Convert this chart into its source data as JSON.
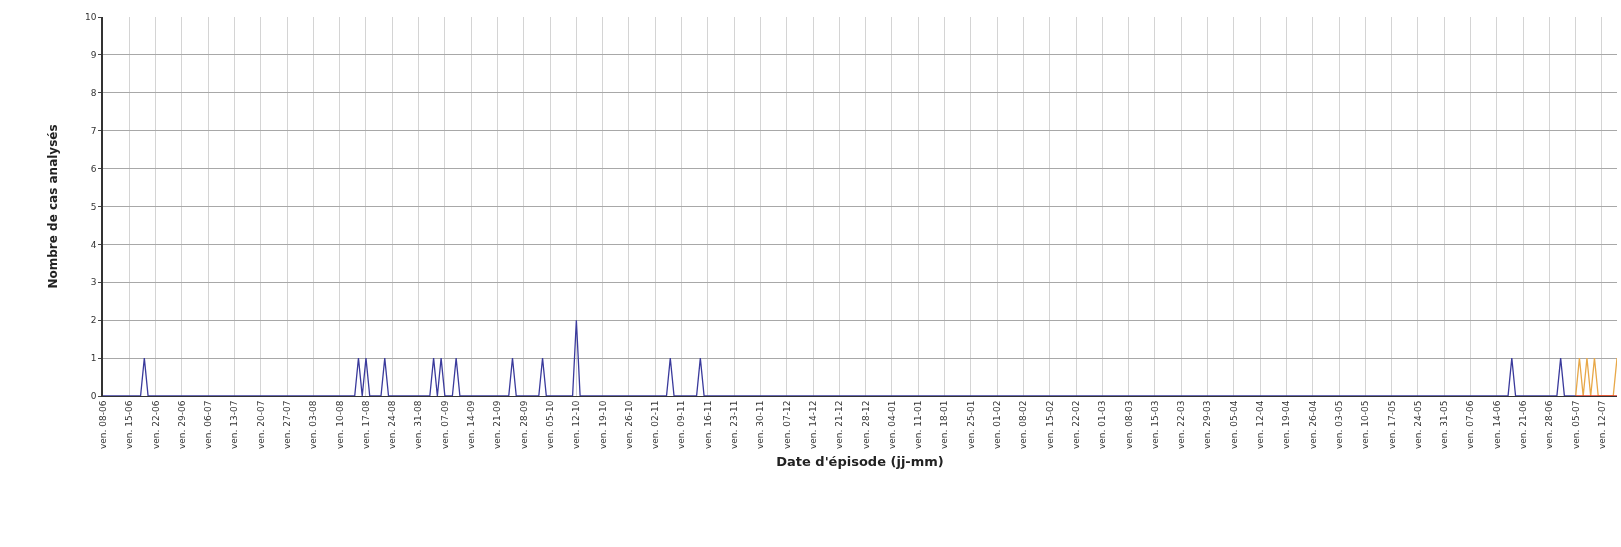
{
  "chart_data": {
    "type": "line",
    "xlabel": "Date d'épisode (jj-mm)",
    "ylabel": "Nombre de cas analysés",
    "ylim": [
      0,
      10
    ],
    "yticks": [
      0,
      1,
      2,
      3,
      4,
      5,
      6,
      7,
      8,
      9,
      10
    ],
    "categories": [
      "ven. 08-06",
      null,
      null,
      null,
      null,
      null,
      null,
      "ven. 15-06",
      null,
      null,
      null,
      null,
      null,
      null,
      "ven. 22-06",
      null,
      null,
      null,
      null,
      null,
      null,
      "ven. 29-06",
      null,
      null,
      null,
      null,
      null,
      null,
      "ven. 06-07",
      null,
      null,
      null,
      null,
      null,
      null,
      "ven. 13-07",
      null,
      null,
      null,
      null,
      null,
      null,
      "ven. 20-07",
      null,
      null,
      null,
      null,
      null,
      null,
      "ven. 27-07",
      null,
      null,
      null,
      null,
      null,
      null,
      "ven. 03-08",
      null,
      null,
      null,
      null,
      null,
      null,
      "ven. 10-08",
      null,
      null,
      null,
      null,
      null,
      null,
      "ven. 17-08",
      null,
      null,
      null,
      null,
      null,
      null,
      "ven. 24-08",
      null,
      null,
      null,
      null,
      null,
      null,
      "ven. 31-08",
      null,
      null,
      null,
      null,
      null,
      null,
      "ven. 07-09",
      null,
      null,
      null,
      null,
      null,
      null,
      "ven. 14-09",
      null,
      null,
      null,
      null,
      null,
      null,
      "ven. 21-09",
      null,
      null,
      null,
      null,
      null,
      null,
      "ven. 28-09",
      null,
      null,
      null,
      null,
      null,
      null,
      "ven. 05-10",
      null,
      null,
      null,
      null,
      null,
      null,
      "ven. 12-10",
      null,
      null,
      null,
      null,
      null,
      null,
      "ven. 19-10",
      null,
      null,
      null,
      null,
      null,
      null,
      "ven. 26-10",
      null,
      null,
      null,
      null,
      null,
      null,
      "ven. 02-11",
      null,
      null,
      null,
      null,
      null,
      null,
      "ven. 09-11",
      null,
      null,
      null,
      null,
      null,
      null,
      "ven. 16-11",
      null,
      null,
      null,
      null,
      null,
      null,
      "ven. 23-11",
      null,
      null,
      null,
      null,
      null,
      null,
      "ven. 30-11",
      null,
      null,
      null,
      null,
      null,
      null,
      "ven. 07-12",
      null,
      null,
      null,
      null,
      null,
      null,
      "ven. 14-12",
      null,
      null,
      null,
      null,
      null,
      null,
      "ven. 21-12",
      null,
      null,
      null,
      null,
      null,
      null,
      "ven. 28-12",
      null,
      null,
      null,
      null,
      null,
      null,
      "ven. 04-01",
      null,
      null,
      null,
      null,
      null,
      null,
      "ven. 11-01",
      null,
      null,
      null,
      null,
      null,
      null,
      "ven. 18-01",
      null,
      null,
      null,
      null,
      null,
      null,
      "ven. 25-01",
      null,
      null,
      null,
      null,
      null,
      null,
      "ven. 01-02",
      null,
      null,
      null,
      null,
      null,
      null,
      "ven. 08-02",
      null,
      null,
      null,
      null,
      null,
      null,
      "ven. 15-02",
      null,
      null,
      null,
      null,
      null,
      null,
      "ven. 22-02",
      null,
      null,
      null,
      null,
      null,
      null,
      "ven. 01-03",
      null,
      null,
      null,
      null,
      null,
      null,
      "ven. 08-03",
      null,
      null,
      null,
      null,
      null,
      null,
      "ven. 15-03",
      null,
      null,
      null,
      null,
      null,
      null,
      "ven. 22-03",
      null,
      null,
      null,
      null,
      null,
      null,
      "ven. 29-03",
      null,
      null,
      null,
      null,
      null,
      null,
      "ven. 05-04",
      null,
      null,
      null,
      null,
      null,
      null,
      "ven. 12-04",
      null,
      null,
      null,
      null,
      null,
      null,
      "ven. 19-04",
      null,
      null,
      null,
      null,
      null,
      null,
      "ven. 26-04",
      null,
      null,
      null,
      null,
      null,
      null,
      "ven. 03-05",
      null,
      null,
      null,
      null,
      null,
      null,
      "ven. 10-05",
      null,
      null,
      null,
      null,
      null,
      null,
      "ven. 17-05",
      null,
      null,
      null,
      null,
      null,
      null,
      "ven. 24-05",
      null,
      null,
      null,
      null,
      null,
      null,
      "ven. 31-05",
      null,
      null,
      null,
      null,
      null,
      null,
      "ven. 07-06",
      null,
      null,
      null,
      null,
      null,
      null,
      "ven. 14-06",
      null,
      null,
      null,
      null,
      null,
      null,
      "ven. 21-06",
      null,
      null,
      null,
      null,
      null,
      null,
      "ven. 28-06",
      null,
      null,
      null,
      null,
      null,
      null,
      "ven. 05-07",
      null,
      null,
      null,
      null,
      null,
      null,
      "ven. 12-07",
      null,
      null,
      null,
      null
    ],
    "grid": true,
    "marker": "none",
    "line_style": "solid",
    "series": [
      {
        "color": "#e8a848",
        "values": [
          null,
          null,
          null,
          null,
          null,
          null,
          null,
          null,
          null,
          null,
          null,
          null,
          null,
          null,
          null,
          null,
          null,
          null,
          null,
          null,
          null,
          null,
          null,
          null,
          null,
          null,
          null,
          null,
          null,
          null,
          null,
          null,
          null,
          null,
          null,
          null,
          null,
          null,
          null,
          null,
          null,
          null,
          null,
          null,
          null,
          null,
          null,
          null,
          null,
          null,
          null,
          null,
          null,
          null,
          null,
          null,
          null,
          null,
          null,
          null,
          null,
          null,
          null,
          null,
          null,
          null,
          null,
          null,
          null,
          null,
          null,
          null,
          null,
          null,
          null,
          null,
          null,
          null,
          null,
          null,
          null,
          null,
          null,
          null,
          null,
          null,
          null,
          null,
          null,
          null,
          null,
          null,
          null,
          null,
          null,
          null,
          null,
          null,
          null,
          null,
          null,
          null,
          null,
          null,
          null,
          null,
          null,
          null,
          null,
          null,
          null,
          null,
          null,
          null,
          null,
          null,
          null,
          null,
          null,
          null,
          null,
          null,
          null,
          null,
          null,
          null,
          null,
          null,
          null,
          null,
          null,
          null,
          null,
          null,
          null,
          null,
          null,
          null,
          null,
          null,
          null,
          null,
          null,
          null,
          null,
          null,
          null,
          null,
          null,
          null,
          null,
          null,
          null,
          null,
          null,
          null,
          null,
          null,
          null,
          null,
          null,
          null,
          null,
          null,
          null,
          null,
          null,
          null,
          null,
          null,
          null,
          null,
          null,
          null,
          null,
          null,
          null,
          null,
          null,
          null,
          null,
          null,
          null,
          null,
          null,
          null,
          null,
          null,
          null,
          null,
          null,
          null,
          null,
          null,
          null,
          null,
          null,
          null,
          null,
          null,
          null,
          null,
          null,
          null,
          null,
          null,
          null,
          null,
          null,
          null,
          null,
          null,
          null,
          null,
          null,
          null,
          null,
          null,
          null,
          null,
          null,
          null,
          null,
          null,
          null,
          null,
          null,
          null,
          null,
          null,
          null,
          null,
          null,
          null,
          null,
          null,
          null,
          null,
          null,
          null,
          null,
          null,
          null,
          null,
          null,
          null,
          null,
          null,
          null,
          null,
          null,
          null,
          null,
          null,
          null,
          null,
          null,
          null,
          null,
          null,
          null,
          null,
          null,
          null,
          null,
          null,
          null,
          null,
          null,
          null,
          null,
          null,
          null,
          null,
          null,
          null,
          null,
          null,
          null,
          null,
          null,
          null,
          null,
          null,
          null,
          null,
          null,
          null,
          null,
          null,
          null,
          null,
          null,
          null,
          null,
          null,
          null,
          null,
          null,
          null,
          null,
          null,
          null,
          null,
          null,
          null,
          null,
          null,
          null,
          null,
          null,
          null,
          null,
          null,
          null,
          null,
          null,
          null,
          null,
          null,
          null,
          null,
          null,
          null,
          null,
          null,
          null,
          null,
          null,
          null,
          null,
          null,
          null,
          null,
          null,
          null,
          null,
          null,
          null,
          null,
          null,
          null,
          null,
          null,
          null,
          null,
          null,
          null,
          null,
          null,
          null,
          null,
          null,
          null,
          null,
          null,
          null,
          null,
          null,
          null,
          null,
          null,
          null,
          null,
          null,
          null,
          null,
          null,
          null,
          null,
          null,
          null,
          null,
          null,
          null,
          null,
          null,
          null,
          null,
          null,
          null,
          null,
          null,
          null,
          null,
          null,
          null,
          null,
          null,
          null,
          null,
          null,
          0,
          1,
          0,
          1,
          0,
          1,
          0,
          0,
          0,
          0,
          0,
          1
        ]
      },
      {
        "color": "#e03a28",
        "values": [
          null,
          null,
          null,
          null,
          null,
          null,
          null,
          null,
          null,
          null,
          null,
          null,
          null,
          null,
          null,
          null,
          null,
          null,
          null,
          null,
          null,
          null,
          null,
          null,
          null,
          null,
          null,
          null,
          null,
          null,
          null,
          null,
          null,
          null,
          null,
          null,
          null,
          null,
          null,
          null,
          null,
          null,
          null,
          null,
          null,
          null,
          null,
          null,
          null,
          null,
          null,
          null,
          null,
          null,
          null,
          null,
          null,
          null,
          null,
          null,
          null,
          null,
          null,
          null,
          null,
          null,
          null,
          null,
          null,
          null,
          null,
          null,
          null,
          null,
          null,
          null,
          null,
          null,
          null,
          null,
          null,
          null,
          null,
          null,
          null,
          null,
          null,
          null,
          null,
          null,
          null,
          null,
          null,
          null,
          null,
          null,
          null,
          null,
          null,
          null,
          null,
          null,
          null,
          null,
          null,
          null,
          null,
          null,
          null,
          null,
          null,
          null,
          null,
          null,
          null,
          null,
          null,
          null,
          null,
          null,
          null,
          null,
          null,
          null,
          null,
          null,
          null,
          null,
          null,
          null,
          null,
          null,
          null,
          null,
          null,
          null,
          null,
          null,
          null,
          null,
          null,
          null,
          null,
          null,
          null,
          null,
          null,
          null,
          null,
          null,
          null,
          null,
          null,
          null,
          null,
          null,
          null,
          null,
          null,
          null,
          null,
          null,
          null,
          null,
          null,
          null,
          null,
          null,
          null,
          null,
          null,
          null,
          null,
          null,
          null,
          null,
          null,
          null,
          null,
          null,
          null,
          null,
          null,
          null,
          null,
          null,
          null,
          null,
          null,
          null,
          null,
          null,
          null,
          null,
          null,
          null,
          null,
          null,
          null,
          null,
          null,
          null,
          null,
          null,
          null,
          null,
          null,
          null,
          null,
          null,
          null,
          null,
          null,
          null,
          null,
          null,
          null,
          null,
          null,
          null,
          null,
          null,
          null,
          null,
          null,
          null,
          null,
          null,
          null,
          null,
          null,
          null,
          null,
          null,
          null,
          null,
          null,
          null,
          null,
          null,
          null,
          null,
          null,
          null,
          null,
          null,
          null,
          null,
          null,
          null,
          null,
          null,
          null,
          null,
          null,
          null,
          null,
          null,
          null,
          null,
          null,
          null,
          null,
          null,
          null,
          null,
          null,
          null,
          null,
          null,
          null,
          null,
          null,
          null,
          null,
          null,
          null,
          null,
          null,
          null,
          null,
          null,
          null,
          null,
          null,
          null,
          null,
          null,
          null,
          null,
          null,
          null,
          null,
          null,
          null,
          null,
          null,
          null,
          null,
          null,
          null,
          null,
          null,
          null,
          null,
          null,
          null,
          null,
          null,
          null,
          null,
          null,
          null,
          null,
          null,
          null,
          null,
          null,
          null,
          null,
          null,
          null,
          null,
          null,
          null,
          null,
          null,
          null,
          null,
          null,
          null,
          null,
          null,
          null,
          null,
          null,
          null,
          null,
          null,
          null,
          null,
          null,
          null,
          null,
          null,
          null,
          null,
          null,
          null,
          null,
          null,
          null,
          null,
          null,
          null,
          null,
          null,
          null,
          null,
          null,
          null,
          null,
          null,
          null,
          null,
          null,
          null,
          null,
          null,
          null,
          null,
          null,
          null,
          null,
          null,
          null,
          null,
          null,
          null,
          null,
          null,
          null,
          null,
          null,
          null,
          null,
          null,
          null,
          null,
          null,
          null,
          null,
          0,
          0,
          0,
          0,
          0,
          0,
          0,
          0,
          0,
          0,
          0,
          0
        ]
      },
      {
        "color": "#3a3a9c",
        "values": [
          0,
          0,
          0,
          0,
          0,
          0,
          0,
          0,
          0,
          0,
          0,
          1,
          0,
          0,
          0,
          0,
          0,
          0,
          0,
          0,
          0,
          0,
          0,
          0,
          0,
          0,
          0,
          0,
          0,
          0,
          0,
          0,
          0,
          0,
          0,
          0,
          0,
          0,
          0,
          0,
          0,
          0,
          0,
          0,
          0,
          0,
          0,
          0,
          0,
          0,
          0,
          0,
          0,
          0,
          0,
          0,
          0,
          0,
          0,
          0,
          0,
          0,
          0,
          0,
          0,
          0,
          0,
          0,
          1,
          0,
          1,
          0,
          0,
          0,
          0,
          1,
          0,
          0,
          0,
          0,
          0,
          0,
          0,
          0,
          0,
          0,
          0,
          0,
          1,
          0,
          1,
          0,
          0,
          0,
          1,
          0,
          0,
          0,
          0,
          0,
          0,
          0,
          0,
          0,
          0,
          0,
          0,
          0,
          0,
          1,
          0,
          0,
          0,
          0,
          0,
          0,
          0,
          1,
          0,
          0,
          0,
          0,
          0,
          0,
          0,
          0,
          2,
          0,
          0,
          0,
          0,
          0,
          0,
          0,
          0,
          0,
          0,
          0,
          0,
          0,
          0,
          0,
          0,
          0,
          0,
          0,
          0,
          0,
          0,
          0,
          0,
          1,
          0,
          0,
          0,
          0,
          0,
          0,
          0,
          1,
          0,
          0,
          0,
          0,
          0,
          0,
          0,
          0,
          0,
          0,
          0,
          0,
          0,
          0,
          0,
          0,
          0,
          0,
          0,
          0,
          0,
          0,
          0,
          0,
          0,
          0,
          0,
          0,
          0,
          0,
          0,
          0,
          0,
          0,
          0,
          0,
          0,
          0,
          0,
          0,
          0,
          0,
          0,
          0,
          0,
          0,
          0,
          0,
          0,
          0,
          0,
          0,
          0,
          0,
          0,
          0,
          0,
          0,
          0,
          0,
          0,
          0,
          0,
          0,
          0,
          0,
          0,
          0,
          0,
          0,
          0,
          0,
          0,
          0,
          0,
          0,
          0,
          0,
          0,
          0,
          0,
          0,
          0,
          0,
          0,
          0,
          0,
          0,
          0,
          0,
          0,
          0,
          0,
          0,
          0,
          0,
          0,
          0,
          0,
          0,
          0,
          0,
          0,
          0,
          0,
          0,
          0,
          0,
          0,
          0,
          0,
          0,
          0,
          0,
          0,
          0,
          0,
          0,
          0,
          0,
          0,
          0,
          0,
          0,
          0,
          0,
          0,
          0,
          0,
          0,
          0,
          0,
          0,
          0,
          0,
          0,
          0,
          0,
          0,
          0,
          0,
          0,
          0,
          0,
          0,
          0,
          0,
          0,
          0,
          0,
          0,
          0,
          0,
          0,
          0,
          0,
          0,
          0,
          0,
          0,
          0,
          0,
          0,
          0,
          0,
          0,
          0,
          0,
          0,
          0,
          0,
          0,
          0,
          0,
          0,
          0,
          0,
          0,
          0,
          0,
          0,
          0,
          0,
          0,
          0,
          0,
          0,
          0,
          0,
          0,
          0,
          0,
          0,
          0,
          0,
          0,
          0,
          0,
          0,
          0,
          0,
          0,
          0,
          0,
          0,
          0,
          0,
          0,
          0,
          0,
          0,
          0,
          0,
          0,
          0,
          1,
          0,
          0,
          0,
          0,
          0,
          0,
          0,
          0,
          0,
          0,
          0,
          0,
          1,
          0,
          0,
          0,
          0,
          null,
          null,
          null,
          null,
          null,
          null,
          null,
          null,
          null,
          null,
          null
        ]
      }
    ]
  }
}
